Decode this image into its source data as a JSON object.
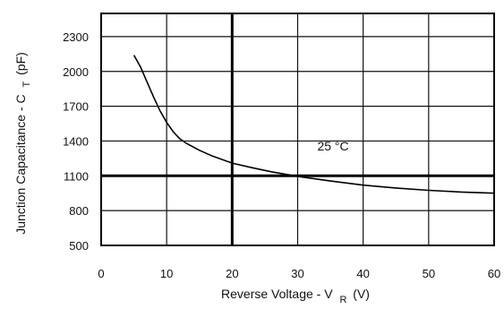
{
  "chart_data": {
    "type": "line",
    "title": "",
    "xlabel": {
      "main": "Reverse Voltage - V",
      "subscript": "R",
      "unit": "(V)"
    },
    "ylabel": {
      "main": "Junction Capacitance - C",
      "subscript": "T",
      "unit": "(pF)"
    },
    "xlim": [
      0,
      60
    ],
    "ylim": [
      500,
      2500
    ],
    "x_ticks": [
      0,
      10,
      20,
      30,
      40,
      50,
      60
    ],
    "x_tick_labels": [
      "0",
      "10",
      "20",
      "30",
      "40",
      "50",
      "60"
    ],
    "y_ticks": [
      500,
      800,
      1100,
      1400,
      1700,
      2000,
      2300
    ],
    "y_tick_labels": [
      "500",
      "800",
      "1100",
      "1400",
      "1700",
      "2000",
      "2300"
    ],
    "bold_gridlines": {
      "x": [
        20
      ],
      "y": [
        1100
      ]
    },
    "grid": true,
    "annotation": {
      "text": "25 °C",
      "x": 33,
      "y": 1320
    },
    "series": [
      {
        "x": [
          5,
          6,
          7,
          8,
          9,
          10,
          11,
          12,
          13,
          15,
          17,
          20,
          23,
          26,
          30,
          35,
          40,
          45,
          50,
          55,
          60
        ],
        "values": [
          2140,
          2040,
          1910,
          1780,
          1660,
          1560,
          1480,
          1420,
          1380,
          1320,
          1270,
          1210,
          1170,
          1135,
          1095,
          1055,
          1020,
          995,
          975,
          960,
          950
        ]
      }
    ]
  }
}
